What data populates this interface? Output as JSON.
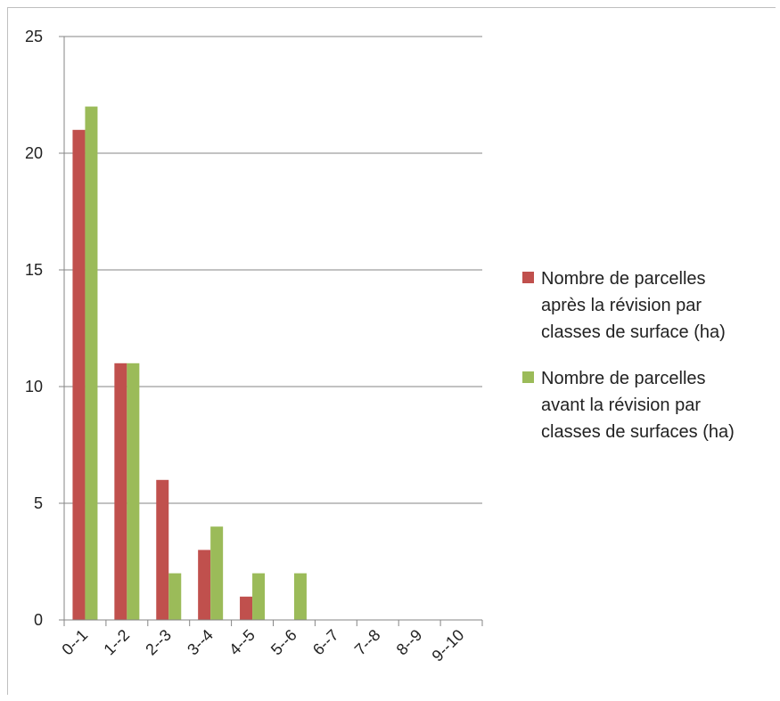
{
  "chart_data": {
    "type": "bar",
    "categories": [
      "0--1",
      "1--2",
      "2--3",
      "3--4",
      "4--5",
      "5--6",
      "6--7",
      "7--8",
      "8--9",
      "9--10"
    ],
    "series": [
      {
        "name": "Nombre de parcelles après la révision par classes de surface (ha)",
        "name_lines": [
          "Nombre de parcelles",
          "après la révision par",
          "classes de surface (ha)"
        ],
        "color": "#c0504d",
        "values": [
          21,
          11,
          6,
          3,
          1,
          0,
          0,
          0,
          0,
          0
        ]
      },
      {
        "name": "Nombre de parcelles avant la révision par classes de surfaces (ha)",
        "name_lines": [
          "Nombre de parcelles",
          "avant la révision par",
          "classes de surfaces (ha)"
        ],
        "color": "#9bbb59",
        "values": [
          22,
          11,
          2,
          4,
          2,
          2,
          0,
          0,
          0,
          0
        ]
      }
    ],
    "ylim": [
      0,
      25
    ],
    "yticks": [
      "0",
      "5",
      "10",
      "15",
      "20",
      "25"
    ],
    "grid": true,
    "legend_position": "right",
    "title": "",
    "xlabel": "",
    "ylabel": ""
  }
}
